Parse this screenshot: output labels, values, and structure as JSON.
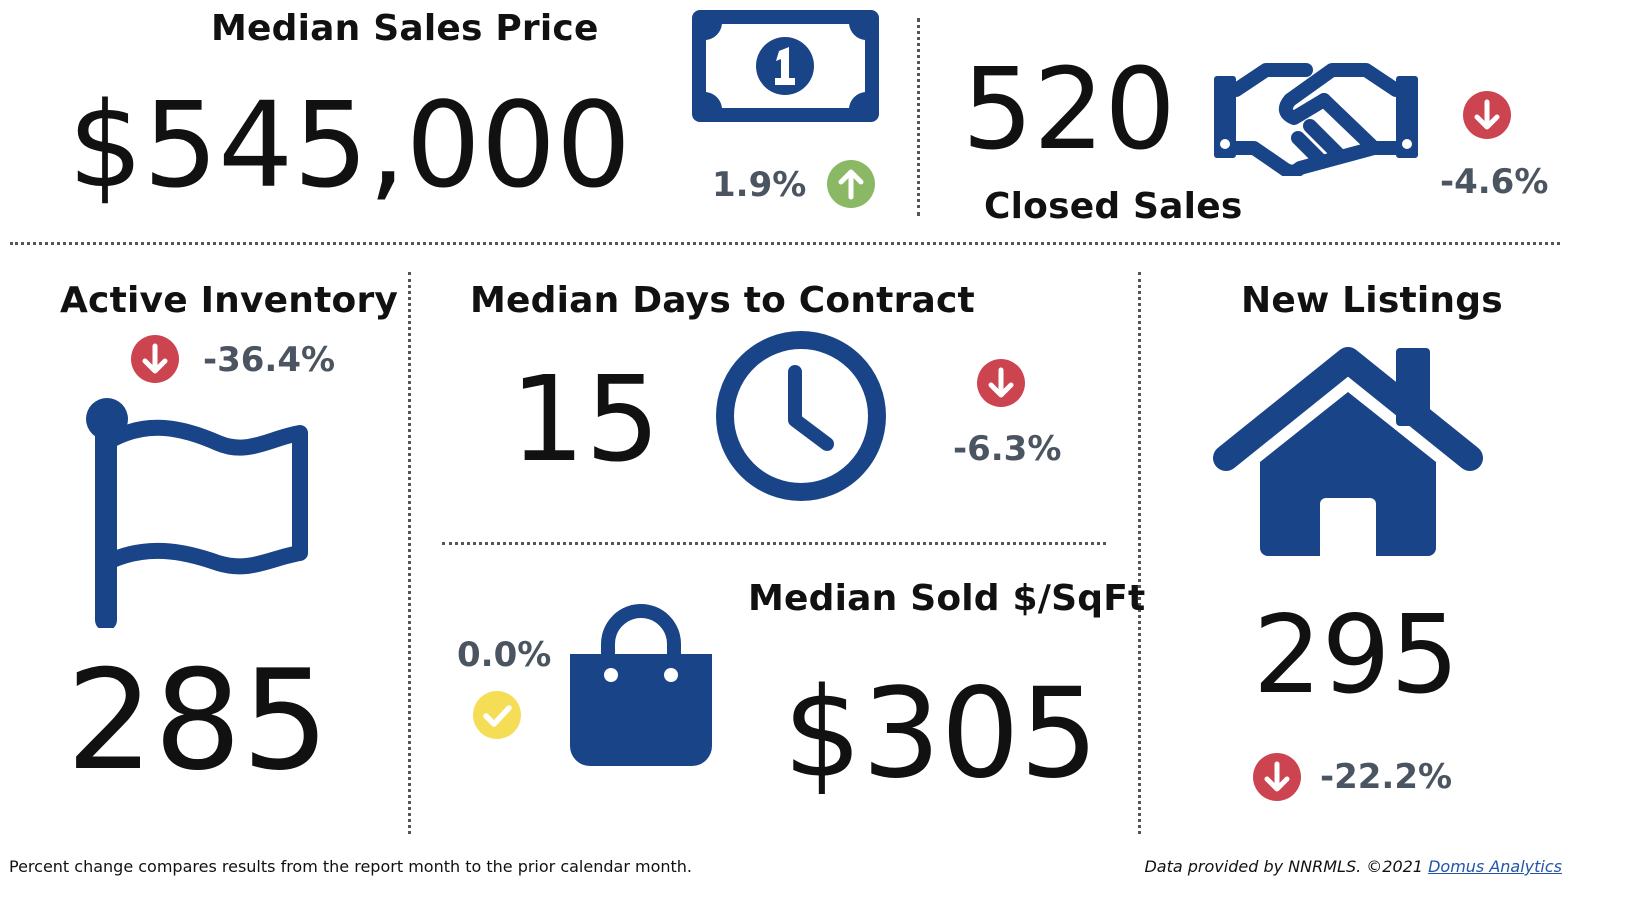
{
  "colors": {
    "icon_blue": "#1a4488",
    "up_green": "#8ab864",
    "down_red": "#cc4450",
    "neutral_yellow": "#f5dd55",
    "percent_gray": "#4a5561"
  },
  "median_sales_price": {
    "title": "Median Sales Price",
    "value": "$545,000",
    "change": "1.9%",
    "trend": "up",
    "icon": "dollar-bill-icon"
  },
  "closed_sales": {
    "title": "Closed Sales",
    "value": "520",
    "change": "-4.6%",
    "trend": "down",
    "icon": "handshake-icon"
  },
  "active_inventory": {
    "title": "Active Inventory",
    "value": "285",
    "change": "-36.4%",
    "trend": "down",
    "icon": "flag-icon"
  },
  "median_days_to_contract": {
    "title": "Median Days to Contract",
    "value": "15",
    "change": "-6.3%",
    "trend": "down",
    "icon": "clock-icon"
  },
  "median_sold_per_sqft": {
    "title": "Median Sold $/SqFt",
    "value": "$305",
    "change": "0.0%",
    "trend": "neutral",
    "icon": "shopping-bag-icon"
  },
  "new_listings": {
    "title": "New Listings",
    "value": "295",
    "change": "-22.2%",
    "trend": "down",
    "icon": "house-icon"
  },
  "footer": {
    "note": "Percent change compares results from the report month to the prior calendar month.",
    "credit": "Data provided by NNRMLS. ©2021",
    "credit_link": "Domus Analytics"
  }
}
